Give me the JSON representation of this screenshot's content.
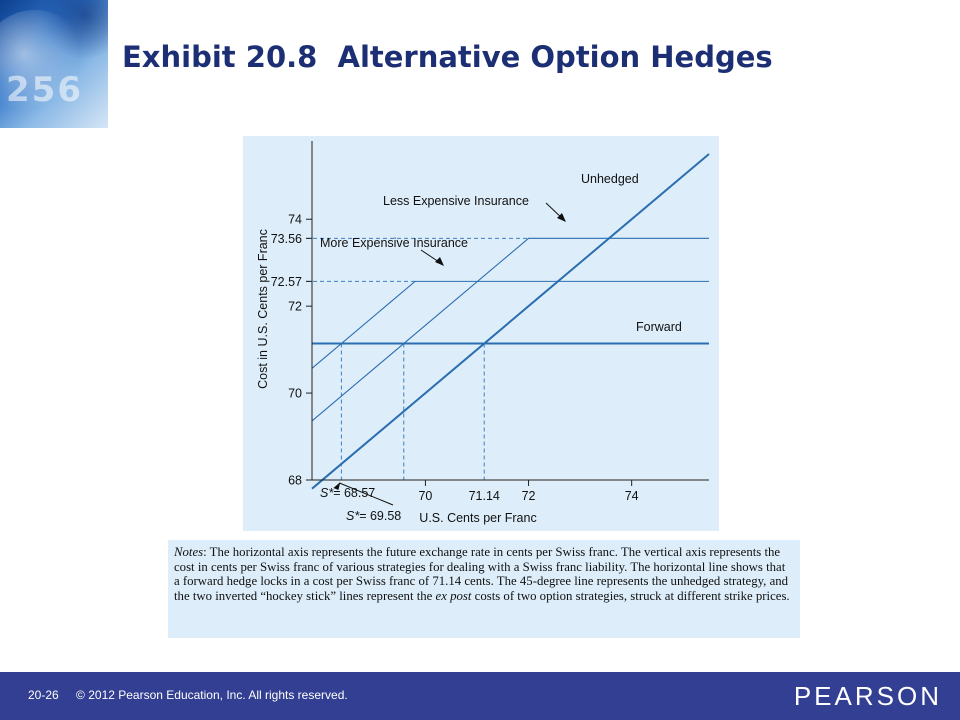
{
  "slide": {
    "title": "Exhibit 20.8  Alternative Option Hedges"
  },
  "chart_data": {
    "type": "line",
    "xlabel": "U.S. Cents per Franc",
    "ylabel": "Cost in U.S. Cents per Franc",
    "xlim": [
      67.8,
      75.5
    ],
    "ylim": [
      68,
      75.8
    ],
    "x_ticks": [
      70,
      72,
      74
    ],
    "x_tick_labels": [
      "70",
      "72",
      "74"
    ],
    "x_marks": [
      {
        "value": 71.14,
        "label": "71.14"
      },
      {
        "label_prefix": "S*",
        "label_value": "= 68.57",
        "value": 68.57
      },
      {
        "label_prefix": "S*",
        "label_value": "= 69.58",
        "value": 69.58
      }
    ],
    "y_ticks": [
      68,
      70,
      72,
      72.57,
      73.56,
      74
    ],
    "y_tick_labels": [
      "68",
      "70",
      "72",
      "72.57",
      "73.56",
      "74"
    ],
    "series": [
      {
        "name": "Unhedged",
        "x": [
          67.8,
          75.5
        ],
        "y": [
          67.8,
          75.5
        ],
        "style": "thick"
      },
      {
        "name": "Forward",
        "x": [
          67.8,
          75.5
        ],
        "y": [
          71.14,
          71.14
        ],
        "style": "thick"
      },
      {
        "name": "Less Expensive Insurance",
        "x": [
          67.8,
          72.0,
          75.5
        ],
        "y": [
          69.36,
          73.56,
          73.56
        ],
        "style": "thin"
      },
      {
        "name": "More Expensive Insurance",
        "x": [
          67.8,
          69.8,
          75.5
        ],
        "y": [
          70.57,
          72.57,
          72.57
        ],
        "style": "thin"
      }
    ],
    "annotations": [
      {
        "text": "Unhedged",
        "series": "Unhedged"
      },
      {
        "text": "Less Expensive Insurance",
        "series": "Less Expensive Insurance"
      },
      {
        "text": "More Expensive Insurance",
        "series": "More Expensive Insurance"
      },
      {
        "text": "Forward",
        "series": "Forward"
      }
    ],
    "colors": {
      "line": "#2a6db0",
      "guide": "#3b7fc2",
      "axis": "#222222",
      "panel": "#ddeefa"
    }
  },
  "notes": {
    "label": "Notes",
    "text": ": The horizontal axis represents the future exchange rate in cents per Swiss franc. The vertical axis represents the cost in cents per Swiss franc of various strategies for dealing with a Swiss franc liability. The horizontal line shows that a forward hedge locks in a cost per Swiss franc of 71.14 cents. The 45-degree line represents the unhedged strategy, and the two inverted “hockey stick” lines represent the ",
    "emph": "ex post",
    "text_end": " costs of two option strategies, struck at different strike prices."
  },
  "footer": {
    "page": "20-26",
    "copyright": "© 2012 Pearson Education, Inc. All rights reserved.",
    "brand": "PEARSON"
  },
  "corner_art": {
    "digits": "256"
  }
}
